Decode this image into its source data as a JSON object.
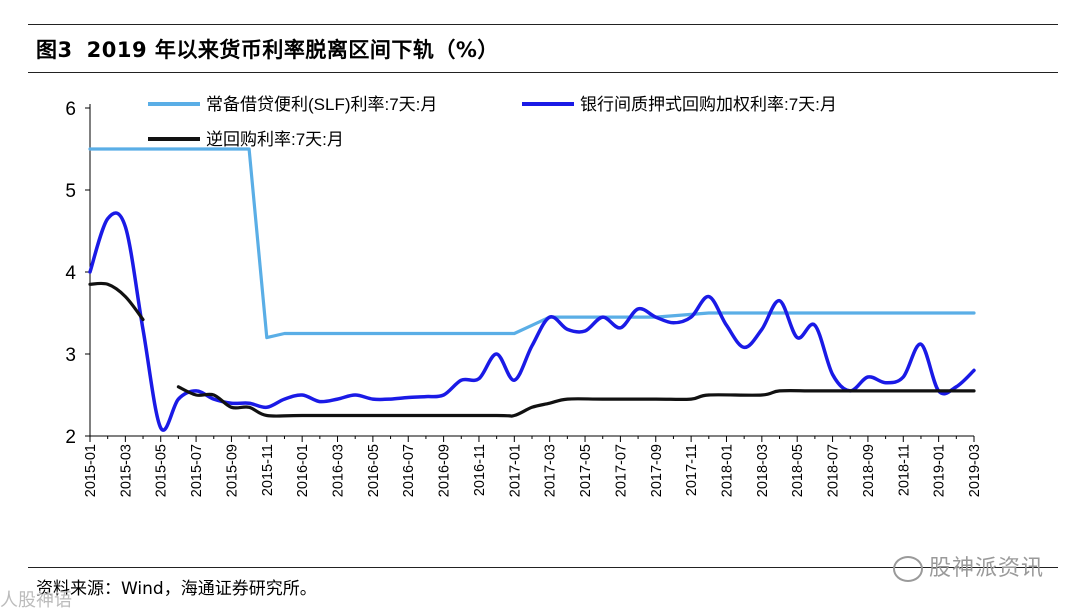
{
  "header": {
    "figure_no": "图3",
    "title": "2019 年以来货币利率脱离区间下轨（%）"
  },
  "footer": {
    "source": "资料来源：Wind，海通证券研究所。",
    "watermark": "股神派资讯",
    "watermark_left": "人股神语"
  },
  "chart_data": {
    "type": "line",
    "title": "",
    "xlabel": "",
    "ylabel": "",
    "ylim": [
      2,
      6
    ],
    "yticks": [
      2,
      3,
      4,
      5,
      6
    ],
    "xlim": [
      "2015-01",
      "2019-03"
    ],
    "x_tick_labels": [
      "2015-01",
      "2015-03",
      "2015-05",
      "2015-07",
      "2015-09",
      "2015-11",
      "2016-01",
      "2016-03",
      "2016-05",
      "2016-07",
      "2016-09",
      "2016-11",
      "2017-01",
      "2017-03",
      "2017-05",
      "2017-07",
      "2017-09",
      "2017-11",
      "2018-01",
      "2018-03",
      "2018-05",
      "2018-07",
      "2018-09",
      "2018-11",
      "2019-01",
      "2019-03"
    ],
    "grid": false,
    "legend_position": "top",
    "series": [
      {
        "name": "常备借贷便利(SLF)利率:7天:月",
        "color": "#5aaee6",
        "points": [
          [
            "2015-01",
            5.5
          ],
          [
            "2015-02",
            5.5
          ],
          [
            "2015-03",
            5.5
          ],
          [
            "2015-04",
            5.5
          ],
          [
            "2015-05",
            5.5
          ],
          [
            "2015-06",
            5.5
          ],
          [
            "2015-07",
            5.5
          ],
          [
            "2015-08",
            5.5
          ],
          [
            "2015-09",
            5.5
          ],
          [
            "2015-10",
            5.5
          ],
          [
            "2015-11",
            3.2
          ],
          [
            "2015-12",
            3.25
          ],
          [
            "2016-01",
            3.25
          ],
          [
            "2016-03",
            3.25
          ],
          [
            "2016-06",
            3.25
          ],
          [
            "2016-09",
            3.25
          ],
          [
            "2016-12",
            3.25
          ],
          [
            "2017-01",
            3.25
          ],
          [
            "2017-02",
            3.35
          ],
          [
            "2017-03",
            3.45
          ],
          [
            "2017-06",
            3.45
          ],
          [
            "2017-09",
            3.45
          ],
          [
            "2017-12",
            3.5
          ],
          [
            "2018-03",
            3.5
          ],
          [
            "2018-06",
            3.5
          ],
          [
            "2018-09",
            3.5
          ],
          [
            "2018-12",
            3.5
          ],
          [
            "2019-03",
            3.5
          ]
        ]
      },
      {
        "name": "银行间质押式回购加权利率:7天:月",
        "color": "#1a1ae6",
        "points": [
          [
            "2015-01",
            4.0
          ],
          [
            "2015-02",
            4.65
          ],
          [
            "2015-03",
            4.55
          ],
          [
            "2015-04",
            3.3
          ],
          [
            "2015-05",
            2.1
          ],
          [
            "2015-06",
            2.45
          ],
          [
            "2015-07",
            2.55
          ],
          [
            "2015-08",
            2.45
          ],
          [
            "2015-09",
            2.4
          ],
          [
            "2015-10",
            2.4
          ],
          [
            "2015-11",
            2.35
          ],
          [
            "2015-12",
            2.45
          ],
          [
            "2016-01",
            2.5
          ],
          [
            "2016-02",
            2.42
          ],
          [
            "2016-03",
            2.45
          ],
          [
            "2016-04",
            2.5
          ],
          [
            "2016-05",
            2.45
          ],
          [
            "2016-06",
            2.45
          ],
          [
            "2016-07",
            2.47
          ],
          [
            "2016-08",
            2.48
          ],
          [
            "2016-09",
            2.5
          ],
          [
            "2016-10",
            2.68
          ],
          [
            "2016-11",
            2.7
          ],
          [
            "2016-12",
            3.0
          ],
          [
            "2017-01",
            2.68
          ],
          [
            "2017-02",
            3.1
          ],
          [
            "2017-03",
            3.45
          ],
          [
            "2017-04",
            3.3
          ],
          [
            "2017-05",
            3.28
          ],
          [
            "2017-06",
            3.45
          ],
          [
            "2017-07",
            3.32
          ],
          [
            "2017-08",
            3.55
          ],
          [
            "2017-09",
            3.45
          ],
          [
            "2017-10",
            3.38
          ],
          [
            "2017-11",
            3.45
          ],
          [
            "2017-12",
            3.7
          ],
          [
            "2018-01",
            3.35
          ],
          [
            "2018-02",
            3.08
          ],
          [
            "2018-03",
            3.3
          ],
          [
            "2018-04",
            3.65
          ],
          [
            "2018-05",
            3.2
          ],
          [
            "2018-06",
            3.35
          ],
          [
            "2018-07",
            2.75
          ],
          [
            "2018-08",
            2.55
          ],
          [
            "2018-09",
            2.72
          ],
          [
            "2018-10",
            2.65
          ],
          [
            "2018-11",
            2.72
          ],
          [
            "2018-12",
            3.12
          ],
          [
            "2019-01",
            2.55
          ],
          [
            "2019-02",
            2.6
          ],
          [
            "2019-03",
            2.8
          ]
        ]
      },
      {
        "name": "逆回购利率:7天:月",
        "color": "#111111",
        "segments": [
          [
            [
              "2015-01",
              3.85
            ],
            [
              "2015-02",
              3.85
            ],
            [
              "2015-03",
              3.7
            ],
            [
              "2015-04",
              3.42
            ]
          ],
          [
            [
              "2015-06",
              2.6
            ],
            [
              "2015-07",
              2.5
            ],
            [
              "2015-08",
              2.5
            ],
            [
              "2015-09",
              2.35
            ],
            [
              "2015-10",
              2.35
            ],
            [
              "2015-11",
              2.25
            ],
            [
              "2016-01",
              2.25
            ],
            [
              "2016-06",
              2.25
            ],
            [
              "2016-12",
              2.25
            ],
            [
              "2017-01",
              2.25
            ],
            [
              "2017-02",
              2.35
            ],
            [
              "2017-03",
              2.4
            ],
            [
              "2017-04",
              2.45
            ],
            [
              "2017-06",
              2.45
            ],
            [
              "2017-09",
              2.45
            ],
            [
              "2017-11",
              2.45
            ],
            [
              "2017-12",
              2.5
            ],
            [
              "2018-03",
              2.5
            ],
            [
              "2018-04",
              2.55
            ],
            [
              "2018-06",
              2.55
            ],
            [
              "2018-09",
              2.55
            ],
            [
              "2018-12",
              2.55
            ],
            [
              "2019-03",
              2.55
            ]
          ]
        ]
      }
    ]
  }
}
